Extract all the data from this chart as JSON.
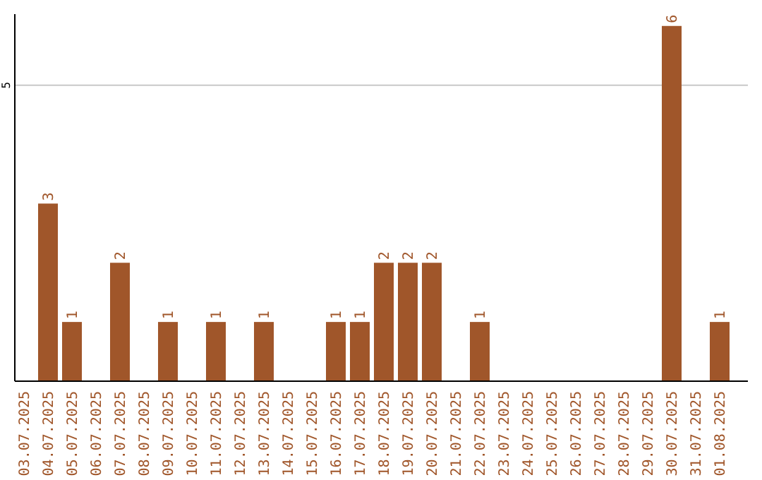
{
  "chart_data": {
    "type": "bar",
    "categories": [
      "03.07.2025",
      "04.07.2025",
      "05.07.2025",
      "06.07.2025",
      "07.07.2025",
      "08.07.2025",
      "09.07.2025",
      "10.07.2025",
      "11.07.2025",
      "12.07.2025",
      "13.07.2025",
      "14.07.2025",
      "15.07.2025",
      "16.07.2025",
      "17.07.2025",
      "18.07.2025",
      "19.07.2025",
      "20.07.2025",
      "21.07.2025",
      "22.07.2025",
      "23.07.2025",
      "24.07.2025",
      "25.07.2025",
      "26.07.2025",
      "27.07.2025",
      "28.07.2025",
      "29.07.2025",
      "30.07.2025",
      "31.07.2025",
      "01.08.2025"
    ],
    "values": [
      0,
      3,
      1,
      0,
      2,
      0,
      1,
      0,
      1,
      0,
      1,
      0,
      0,
      1,
      1,
      2,
      2,
      2,
      0,
      1,
      0,
      0,
      0,
      0,
      0,
      0,
      0,
      6,
      0,
      1
    ],
    "value_labels": [
      null,
      "3",
      "1",
      null,
      "2",
      null,
      "1",
      null,
      "1",
      null,
      "1",
      null,
      null,
      "1",
      "1",
      "2",
      "2",
      "2",
      null,
      "1",
      null,
      null,
      null,
      null,
      null,
      null,
      null,
      "6",
      null,
      "1"
    ],
    "color": "#a0562a",
    "ylim": [
      0,
      6.2
    ],
    "yticks": [
      5
    ],
    "grid": "y"
  }
}
